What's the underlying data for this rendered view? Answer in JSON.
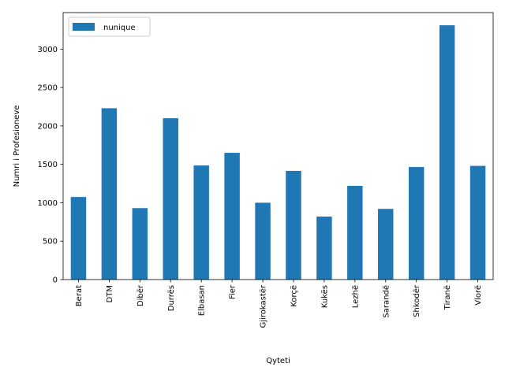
{
  "chart_data": {
    "type": "bar",
    "categories": [
      "Berat",
      "DTM",
      "Dibër",
      "Durrës",
      "Elbasan",
      "Fier",
      "Gjirokastër",
      "Korçë",
      "Kukës",
      "Lezhë",
      "Sarandë",
      "Shkodër",
      "Tiranë",
      "Vlorë"
    ],
    "series": [
      {
        "name": "nunique",
        "values": [
          1075,
          2230,
          930,
          2100,
          1485,
          1650,
          1000,
          1415,
          820,
          1220,
          920,
          1465,
          3310,
          1480
        ],
        "color": "#1f77b4"
      }
    ],
    "xlabel": "Qyteti",
    "ylabel": "Numri i Profesioneve",
    "ylim": [
      0,
      3475
    ],
    "yticks": [
      0,
      500,
      1000,
      1500,
      2000,
      2500,
      3000
    ],
    "ytick_labels": [
      "0",
      "500",
      "1000",
      "1500",
      "2000",
      "2500",
      "3000"
    ],
    "legend": "top-left",
    "grid": false
  }
}
